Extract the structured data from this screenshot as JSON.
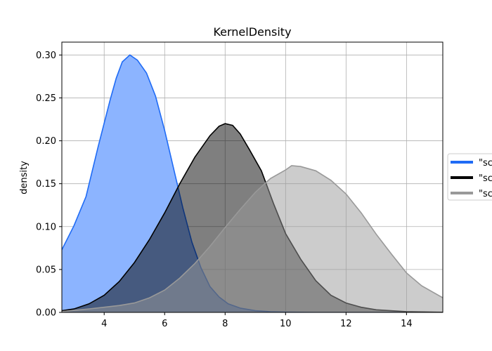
{
  "chart_data": {
    "type": "area",
    "title": "KernelDensity",
    "xlabel": "",
    "ylabel": "density",
    "xlim": [
      2.6,
      15.2
    ],
    "ylim": [
      0,
      0.315
    ],
    "xticks": [
      4,
      6,
      8,
      10,
      12,
      14
    ],
    "yticks": [
      0.0,
      0.05,
      0.1,
      0.15,
      0.2,
      0.25,
      0.3
    ],
    "xtick_labels": [
      "4",
      "6",
      "8",
      "10",
      "12",
      "14"
    ],
    "ytick_labels": [
      "0.00",
      "0.05",
      "0.10",
      "0.15",
      "0.20",
      "0.25",
      "0.30"
    ],
    "grid": true,
    "legend_position": "right, clipped at figure edge",
    "series": [
      {
        "name": "\"sc",
        "color": "#1f6bf5",
        "fill": "#8cb4ff",
        "fill_opacity": 1.0,
        "points": [
          [
            2.6,
            0.073
          ],
          [
            3.0,
            0.101
          ],
          [
            3.4,
            0.135
          ],
          [
            3.8,
            0.193
          ],
          [
            4.2,
            0.248
          ],
          [
            4.4,
            0.273
          ],
          [
            4.6,
            0.292
          ],
          [
            4.85,
            0.3
          ],
          [
            5.1,
            0.294
          ],
          [
            5.4,
            0.279
          ],
          [
            5.7,
            0.252
          ],
          [
            6.0,
            0.212
          ],
          [
            6.3,
            0.167
          ],
          [
            6.6,
            0.122
          ],
          [
            6.9,
            0.082
          ],
          [
            7.2,
            0.052
          ],
          [
            7.5,
            0.03
          ],
          [
            7.8,
            0.018
          ],
          [
            8.1,
            0.01
          ],
          [
            8.5,
            0.005
          ],
          [
            9.0,
            0.002
          ],
          [
            9.5,
            0.0008
          ],
          [
            10.0,
            0.0003
          ],
          [
            11.0,
            0.0
          ],
          [
            12.0,
            0.0
          ],
          [
            13.0,
            0.0
          ],
          [
            15.2,
            0.0
          ]
        ]
      },
      {
        "name": "\"sc",
        "color": "#000000",
        "fill": "#000000",
        "fill_opacity": 0.5,
        "points": [
          [
            2.6,
            0.002
          ],
          [
            3.0,
            0.004
          ],
          [
            3.5,
            0.01
          ],
          [
            4.0,
            0.02
          ],
          [
            4.5,
            0.036
          ],
          [
            5.0,
            0.058
          ],
          [
            5.5,
            0.085
          ],
          [
            6.0,
            0.116
          ],
          [
            6.5,
            0.15
          ],
          [
            7.0,
            0.181
          ],
          [
            7.5,
            0.206
          ],
          [
            7.8,
            0.217
          ],
          [
            8.0,
            0.22
          ],
          [
            8.25,
            0.218
          ],
          [
            8.5,
            0.208
          ],
          [
            8.8,
            0.19
          ],
          [
            9.2,
            0.165
          ],
          [
            9.6,
            0.127
          ],
          [
            10.0,
            0.092
          ],
          [
            10.5,
            0.062
          ],
          [
            11.0,
            0.037
          ],
          [
            11.5,
            0.02
          ],
          [
            12.0,
            0.011
          ],
          [
            12.5,
            0.006
          ],
          [
            13.0,
            0.003
          ],
          [
            14.0,
            0.0009
          ],
          [
            15.2,
            0.0002
          ]
        ]
      },
      {
        "name": "\"sc",
        "color": "#999999",
        "fill": "#999999",
        "fill_opacity": 0.5,
        "points": [
          [
            2.6,
            0.001
          ],
          [
            3.5,
            0.004
          ],
          [
            4.5,
            0.008
          ],
          [
            5.0,
            0.011
          ],
          [
            5.5,
            0.017
          ],
          [
            6.0,
            0.026
          ],
          [
            6.5,
            0.04
          ],
          [
            7.0,
            0.057
          ],
          [
            7.5,
            0.077
          ],
          [
            8.0,
            0.099
          ],
          [
            8.5,
            0.12
          ],
          [
            9.0,
            0.14
          ],
          [
            9.5,
            0.156
          ],
          [
            10.0,
            0.166
          ],
          [
            10.2,
            0.171
          ],
          [
            10.5,
            0.17
          ],
          [
            11.0,
            0.165
          ],
          [
            11.5,
            0.154
          ],
          [
            12.0,
            0.138
          ],
          [
            12.5,
            0.116
          ],
          [
            13.0,
            0.091
          ],
          [
            13.5,
            0.068
          ],
          [
            14.0,
            0.046
          ],
          [
            14.5,
            0.031
          ],
          [
            15.2,
            0.017
          ]
        ]
      }
    ]
  }
}
